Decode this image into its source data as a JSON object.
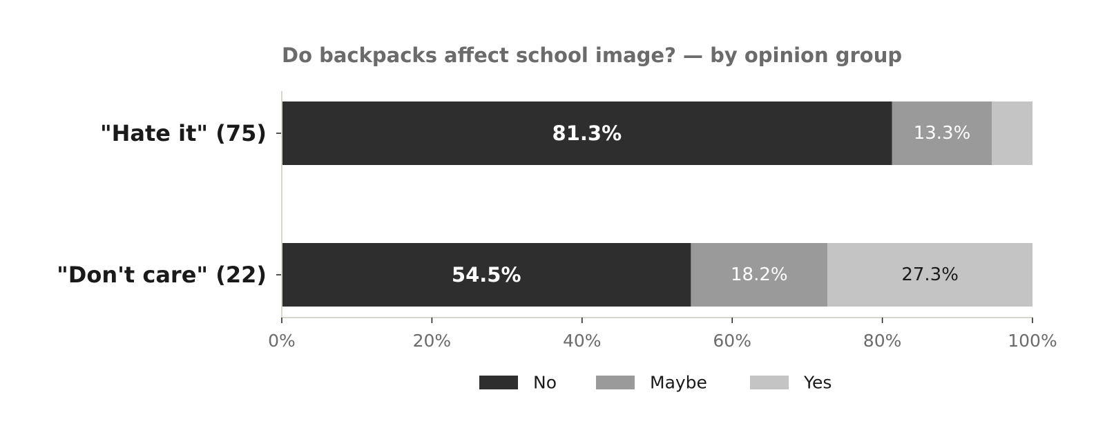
{
  "chart_data": {
    "type": "bar",
    "orientation": "horizontal",
    "stacked": true,
    "title": "Do backpacks affect school image? — by opinion group",
    "xlabel": "",
    "ylabel": "",
    "categories": [
      "\"Hate it\" (75)",
      "\"Don't care\" (22)"
    ],
    "series": [
      {
        "name": "No",
        "color": "#2e2e2e",
        "label_color": "#ffffff",
        "label_bold": true,
        "values": [
          81.3,
          54.5
        ],
        "labels": [
          "81.3%",
          "54.5%"
        ]
      },
      {
        "name": "Maybe",
        "color": "#9a9a9a",
        "label_color": "#ffffff",
        "label_bold": false,
        "values": [
          13.3,
          18.2
        ],
        "labels": [
          "13.3%",
          "18.2%"
        ]
      },
      {
        "name": "Yes",
        "color": "#c4c4c4",
        "label_color": "#1a1a1a",
        "label_bold": false,
        "values": [
          5.4,
          27.3
        ],
        "labels": [
          "",
          "27.3%"
        ]
      }
    ],
    "xlim": [
      0,
      100
    ],
    "xticks": [
      0,
      20,
      40,
      60,
      80,
      100
    ],
    "xtick_labels": [
      "0%",
      "20%",
      "40%",
      "60%",
      "80%",
      "100%"
    ],
    "grid": false,
    "legend_position": "bottom-center",
    "axis_color": "#d6d6cc"
  }
}
